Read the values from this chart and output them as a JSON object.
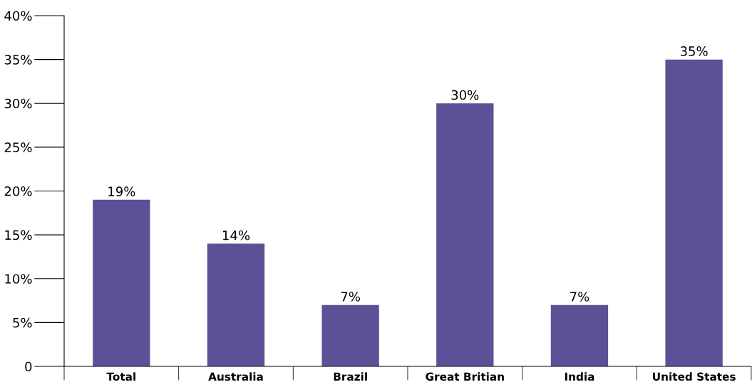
{
  "chart_data": {
    "type": "bar",
    "categories": [
      "Total",
      "Australia",
      "Brazil",
      "Great Britian",
      "India",
      "United States"
    ],
    "values": [
      19,
      14,
      7,
      30,
      7,
      35
    ],
    "color": "#5b5196",
    "data_labels": true,
    "value_labels": [
      "19%",
      "14%",
      "7%",
      "30%",
      "7%",
      "35%"
    ],
    "ylim": [
      0,
      40
    ],
    "yticks": [
      {
        "value": 0,
        "label": "0"
      },
      {
        "value": 5,
        "label": "5%"
      },
      {
        "value": 10,
        "label": "10%"
      },
      {
        "value": 15,
        "label": "15%"
      },
      {
        "value": 20,
        "label": "20%"
      },
      {
        "value": 25,
        "label": "25%"
      },
      {
        "value": 30,
        "label": "30%"
      },
      {
        "value": 35,
        "label": "35%"
      },
      {
        "value": 40,
        "label": "40%"
      }
    ],
    "grid": false,
    "legend": false
  }
}
